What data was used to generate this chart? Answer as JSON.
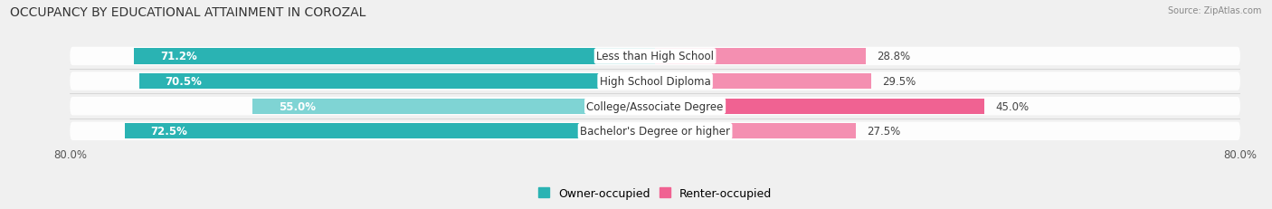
{
  "title": "OCCUPANCY BY EDUCATIONAL ATTAINMENT IN COROZAL",
  "source": "Source: ZipAtlas.com",
  "categories": [
    "Less than High School",
    "High School Diploma",
    "College/Associate Degree",
    "Bachelor's Degree or higher"
  ],
  "owner_pct": [
    71.2,
    70.5,
    55.0,
    72.5
  ],
  "renter_pct": [
    28.8,
    29.5,
    45.0,
    27.5
  ],
  "owner_color_normal": "#2ab3b3",
  "owner_color_light": "#7fd4d4",
  "renter_color_normal": "#f48fb1",
  "renter_color_strong": "#f06292",
  "bar_height": 0.62,
  "row_bg_color": "#e8e8e8",
  "xlim_left": -80.0,
  "xlim_right": 80.0,
  "background_color": "#f0f0f0",
  "title_fontsize": 10,
  "label_fontsize": 8.5,
  "pct_fontsize": 8.5,
  "tick_fontsize": 8.5,
  "legend_fontsize": 9
}
